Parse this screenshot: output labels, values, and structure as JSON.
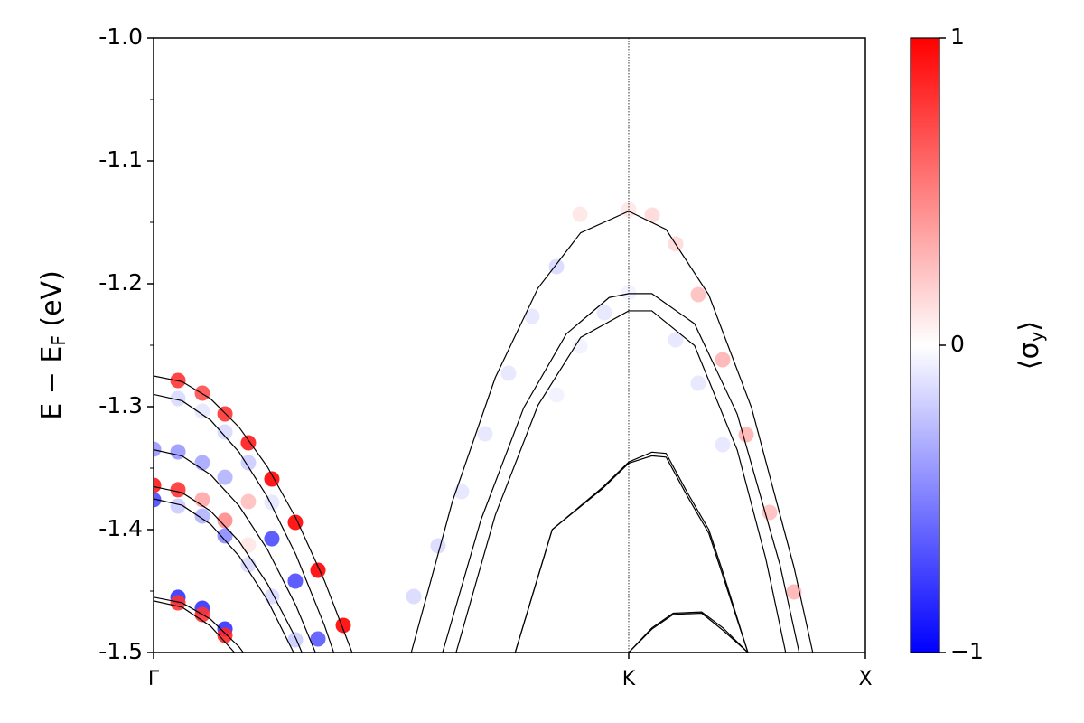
{
  "chart_data": {
    "type": "line",
    "ylabel": {
      "text": "E − E",
      "sub": "F",
      "tail": " (eV)"
    },
    "xlim": [
      0,
      1
    ],
    "xticks": [
      {
        "value": 0,
        "label": "Γ"
      },
      {
        "value": 0.6675,
        "label": "K"
      },
      {
        "value": 1,
        "label": "X"
      }
    ],
    "kpoint_lines": true,
    "ylim": [
      -1.5,
      -1.0
    ],
    "yticks": [
      {
        "value": -1.5,
        "label": "-1.5"
      },
      -1.4,
      -1.3,
      -1.2,
      -1.1,
      {
        "value": -1.0,
        "label": "-1.0"
      }
    ],
    "yminor_ticks": [
      -1.45,
      -1.35,
      -1.25,
      -1.15,
      -1.05
    ],
    "series": [
      {
        "color": "#000000",
        "x": [
          0,
          0.04,
          0.08,
          0.12,
          0.16,
          0.2,
          0.24,
          0.28
        ],
        "values": [
          -1.275,
          -1.2796,
          -1.2935,
          -1.3166,
          -1.349,
          -1.3906,
          -1.4415,
          -1.5016
        ]
      },
      {
        "color": "#000000",
        "x": [
          0,
          0.04,
          0.08,
          0.12,
          0.16,
          0.2,
          0.24,
          0.28
        ],
        "values": [
          -1.29,
          -1.2952,
          -1.3109,
          -1.3369,
          -1.3735,
          -1.4204,
          -1.4778,
          -1.5456
        ]
      },
      {
        "color": "#000000",
        "x": [
          0,
          0.04,
          0.08,
          0.12,
          0.16,
          0.2,
          0.24
        ],
        "values": [
          -1.335,
          -1.3401,
          -1.3553,
          -1.3806,
          -1.4162,
          -1.4618,
          -1.5176
        ]
      },
      {
        "color": "#000000",
        "x": [
          0,
          0.04,
          0.08,
          0.12,
          0.16,
          0.2,
          0.24
        ],
        "values": [
          -1.365,
          -1.3699,
          -1.3848,
          -1.4095,
          -1.4441,
          -1.4886,
          -1.543
        ]
      },
      {
        "color": "#000000",
        "x": [
          0,
          0.04,
          0.08,
          0.12,
          0.16,
          0.2
        ],
        "values": [
          -1.375,
          -1.3802,
          -1.3956,
          -1.4214,
          -1.4574,
          -1.5038
        ]
      },
      {
        "color": "#000000",
        "x": [
          0,
          0.04,
          0.08,
          0.12,
          0.16
        ],
        "values": [
          -1.455,
          -1.4595,
          -1.4729,
          -1.4953,
          -1.5267
        ]
      },
      {
        "color": "#000000",
        "x": [
          0,
          0.04,
          0.08,
          0.12
        ],
        "values": [
          -1.458,
          -1.4631,
          -1.4785,
          -1.5041
        ]
      },
      {
        "color": "#000000",
        "x": [
          0.362,
          0.42,
          0.48,
          0.54,
          0.6,
          0.6675,
          0.72,
          0.78,
          0.84,
          0.9,
          0.926
        ],
        "values": [
          -1.5,
          -1.3768,
          -1.2764,
          -1.2036,
          -1.1585,
          -1.141,
          -1.1558,
          -1.209,
          -1.3008,
          -1.4313,
          -1.4998
        ]
      },
      {
        "color": "#000000",
        "x": [
          0.406,
          0.46,
          0.52,
          0.58,
          0.64,
          0.6675,
          0.7,
          0.76,
          0.82,
          0.88,
          0.907
        ],
        "values": [
          -1.5,
          -1.3919,
          -1.3009,
          -1.2407,
          -1.2112,
          -1.208,
          -1.208,
          -1.2325,
          -1.3061,
          -1.4286,
          -1.5
        ]
      },
      {
        "color": "#000000",
        "x": [
          0.425,
          0.48,
          0.54,
          0.6,
          0.6675,
          0.7,
          0.76,
          0.82,
          0.86,
          0.888
        ],
        "values": [
          -1.5,
          -1.3883,
          -1.2989,
          -1.2436,
          -1.222,
          -1.222,
          -1.2503,
          -1.3353,
          -1.4235,
          -1.5
        ]
      },
      {
        "color": "#000000",
        "x": [
          0.508,
          0.56,
          0.63,
          0.6675,
          0.7,
          0.72,
          0.75,
          0.78,
          0.8,
          0.835
        ],
        "values": [
          -1.5,
          -1.4,
          -1.366,
          -1.345,
          -1.337,
          -1.338,
          -1.37,
          -1.4,
          -1.435,
          -1.5
        ]
      },
      {
        "color": "#000000",
        "x": [
          0.508,
          0.56,
          0.63,
          0.6675,
          0.7,
          0.72,
          0.75,
          0.78,
          0.8,
          0.835
        ],
        "values": [
          -1.5,
          -1.4,
          -1.367,
          -1.346,
          -1.34,
          -1.341,
          -1.373,
          -1.403,
          -1.438,
          -1.5
        ]
      },
      {
        "color": "#000000",
        "x": [
          0.6675,
          0.7,
          0.73,
          0.77,
          0.8,
          0.835
        ],
        "values": [
          -1.5,
          -1.48,
          -1.468,
          -1.467,
          -1.48,
          -1.5
        ]
      },
      {
        "color": "#000000",
        "x": [
          0.6675,
          0.7,
          0.73,
          0.77,
          0.8,
          0.835
        ],
        "values": [
          -1.5,
          -1.481,
          -1.469,
          -1.468,
          -1.482,
          -1.5
        ]
      }
    ],
    "scatter": {
      "x": [
        0.0343,
        0.0685,
        0.1003,
        0.1332,
        0.1662,
        0.1992,
        0.231,
        0.2665,
        0.0343,
        0.0685,
        0.1003,
        0.1332,
        0.1662,
        0,
        0.0343,
        0.0685,
        0.1003,
        0.1332,
        0.1662,
        0.1992,
        0.231,
        0,
        0.0343,
        0.0685,
        0.1003,
        0.1332,
        0,
        0.0343,
        0.0685,
        0.1003,
        0.1332,
        0.1662,
        0.1992,
        0.0343,
        0.0685,
        0.1003,
        0.0343,
        0.0685,
        0.1003,
        0.599,
        0.6675,
        0.7005,
        0.7335,
        0.7652,
        0.7995,
        0.8325,
        0.8655,
        0.8997,
        0.566,
        0.5317,
        0.4987,
        0.4657,
        0.4327,
        0.3997,
        0.3655,
        0.6333,
        0.6675,
        0.7335,
        0.7652,
        0.7995,
        0.599,
        0.566
      ],
      "values": [
        -1.2787,
        -1.289,
        -1.3059,
        -1.3294,
        -1.3588,
        -1.3941,
        -1.4331,
        -1.4779,
        -1.2934,
        -1.3037,
        -1.3206,
        -1.3456,
        -1.3779,
        -1.3346,
        -1.3368,
        -1.3456,
        -1.3574,
        -1.3772,
        -1.4074,
        -1.4419,
        -1.489,
        -1.364,
        -1.3676,
        -1.3757,
        -1.3926,
        -1.4125,
        -1.3757,
        -1.3809,
        -1.389,
        -1.4051,
        -1.4287,
        -1.4544,
        -1.4897,
        -1.4551,
        -1.464,
        -1.4809,
        -1.4596,
        -1.4691,
        -1.486,
        -1.1434,
        -1.1397,
        -1.1441,
        -1.1676,
        -1.2088,
        -1.2618,
        -1.3228,
        -1.386,
        -1.4507,
        -1.186,
        -1.2265,
        -1.2728,
        -1.3221,
        -1.3691,
        -1.4132,
        -1.4544,
        -1.2235,
        -1.2074,
        -1.2456,
        -1.2809,
        -1.3309,
        -1.2507,
        -1.2904
      ],
      "sigma": [
        0.8,
        0.7,
        0.8,
        0.9,
        1,
        1,
        1,
        1,
        -0.15,
        -0.1,
        -0.15,
        -0.2,
        -0.1,
        -0.4,
        -0.4,
        -0.35,
        -0.3,
        0.25,
        -0.7,
        -0.7,
        -0.65,
        0.9,
        0.8,
        0.35,
        0.45,
        0.1,
        -0.7,
        -0.2,
        -0.3,
        -0.45,
        -0.15,
        -0.15,
        -0.2,
        -0.8,
        -0.8,
        -0.8,
        0.8,
        0.8,
        0.85,
        0.1,
        0.1,
        0.15,
        0.15,
        0.25,
        0.3,
        0.3,
        0.25,
        0.3,
        -0.15,
        -0.1,
        -0.1,
        -0.1,
        -0.1,
        -0.15,
        -0.15,
        -0.1,
        -0.05,
        -0.1,
        -0.1,
        -0.1,
        -0.05,
        -0.05
      ]
    },
    "colorbar": {
      "label": "⟨σ",
      "label_sub": "y",
      "label_end": "⟩",
      "clim": [
        -1,
        1
      ],
      "ticks": [
        {
          "value": -1,
          "label": "−1"
        },
        0,
        1
      ],
      "cmap": [
        "#0000ff",
        "#ffffff",
        "#ff0000"
      ]
    }
  }
}
